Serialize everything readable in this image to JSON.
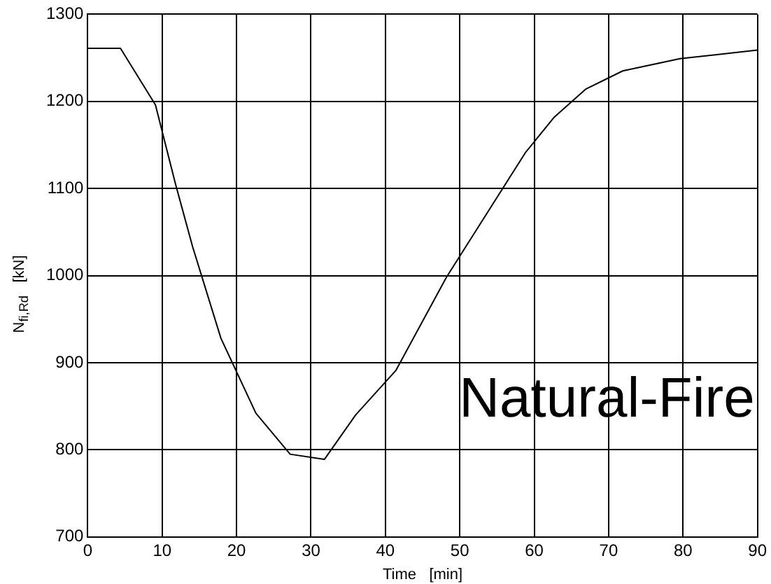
{
  "chart_data": {
    "type": "line",
    "xlabel": "Time   [min]",
    "ylabel": "N$_{fi,Rd}$   [kN]",
    "annotations": [
      "Natural-Fire"
    ],
    "x": [
      0,
      4.4,
      9.1,
      11.8,
      14.1,
      17.9,
      22.6,
      27.2,
      31.8,
      36,
      41.4,
      48.2,
      58.8,
      62.7,
      66.9,
      71.9,
      79.6,
      90
    ],
    "series": [
      {
        "color": "#000000",
        "values": [
          1261,
          1261,
          1196,
          1105,
          1033,
          928,
          842,
          795,
          789,
          840,
          891,
          998,
          1141,
          1182,
          1214,
          1235,
          1249,
          1259
        ]
      }
    ],
    "xlim": [
      0,
      90
    ],
    "xticks": [
      0,
      10,
      20,
      30,
      40,
      50,
      60,
      70,
      80,
      90
    ],
    "ylim": [
      700,
      1300
    ],
    "yticks": [
      700,
      800,
      900,
      1000,
      1100,
      1200,
      1300
    ],
    "grid": true,
    "legend": false,
    "marker": "none",
    "line_style": "solid"
  }
}
